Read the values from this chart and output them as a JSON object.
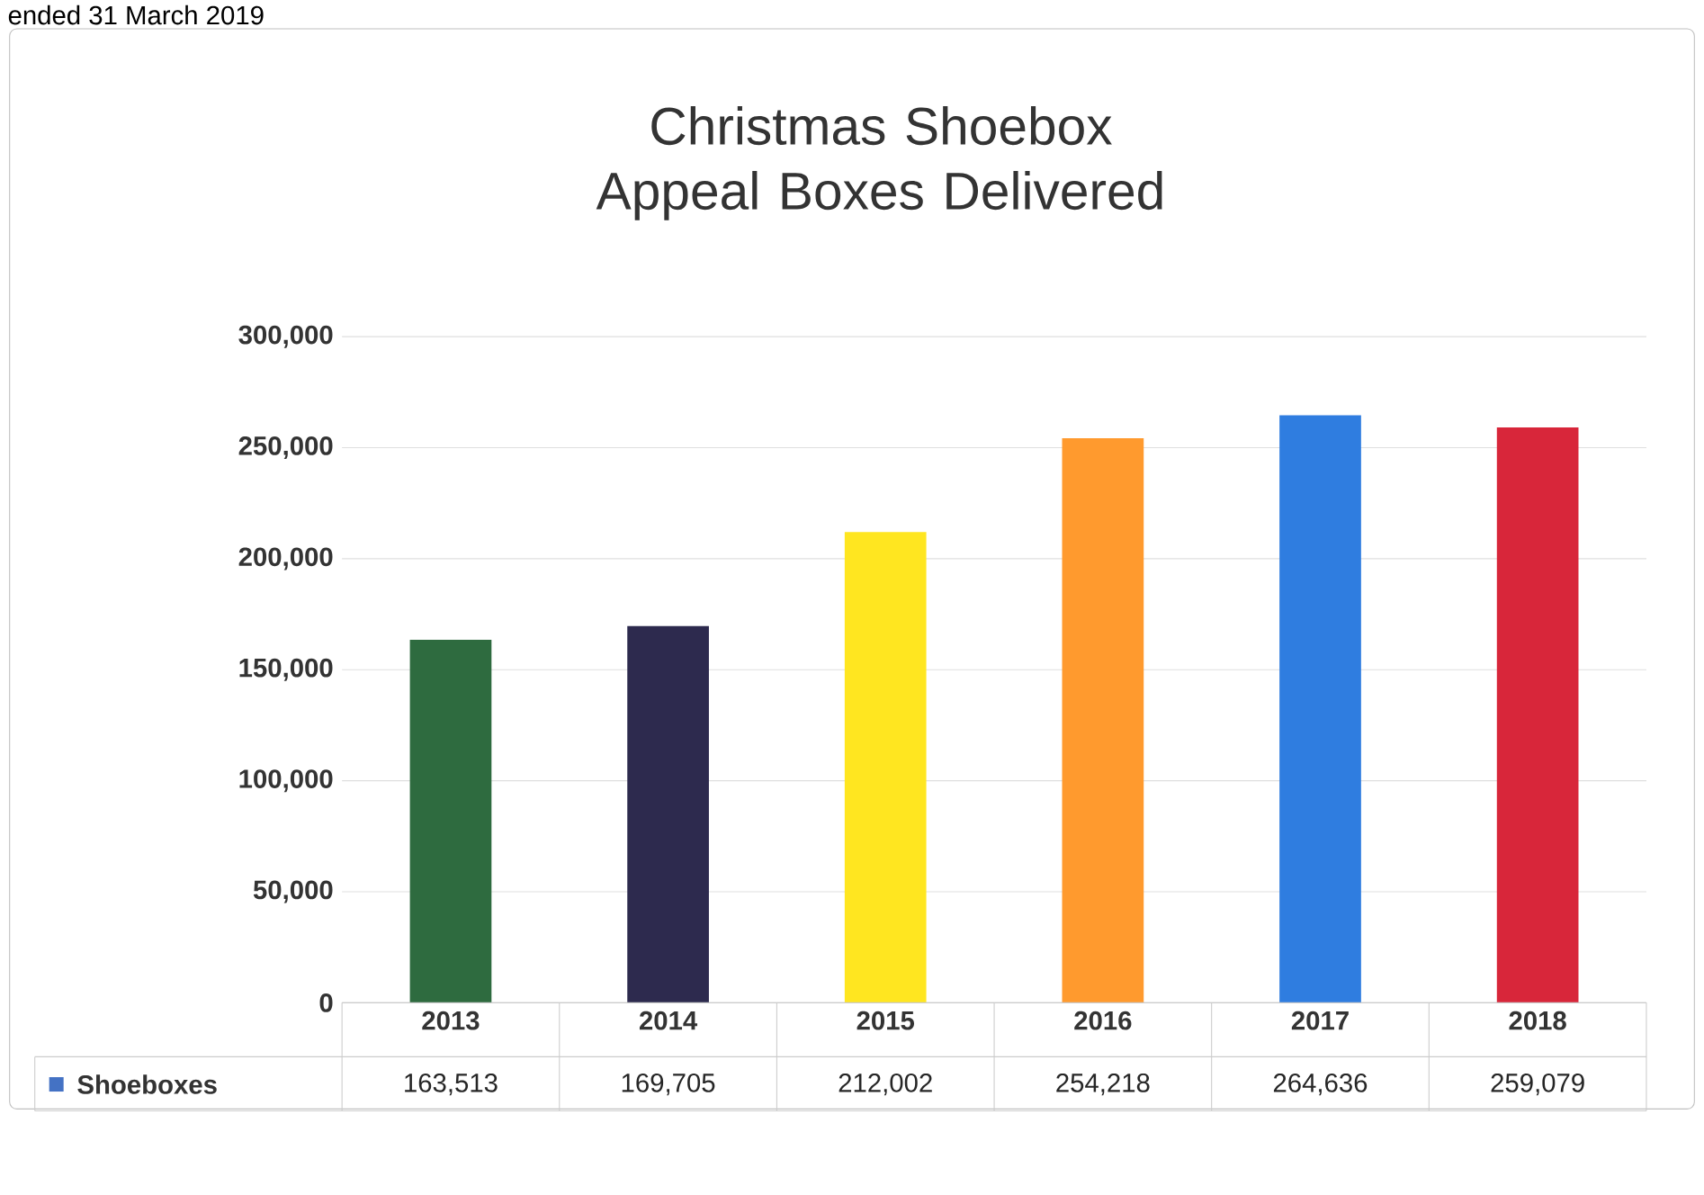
{
  "chart_data": {
    "type": "bar",
    "title": "Christmas Shoebox Appeal Boxes Delivered",
    "annotations": [
      "ended 31 March 2019"
    ],
    "categories": [
      "2013",
      "2014",
      "2015",
      "2016",
      "2017",
      "2018"
    ],
    "series": [
      {
        "name": "Shoeboxes",
        "color": "#4472c4",
        "colors": [
          "#2e6b3f",
          "#2d2a4e",
          "#ffe620",
          "#ff9a2e",
          "#2f7de0",
          "#d8263a"
        ],
        "values": [
          163513,
          169705,
          212002,
          254218,
          264636,
          259079
        ],
        "value_labels": [
          "163,513",
          "169,705",
          "212,002",
          "254,218",
          "264,636",
          "259,079"
        ]
      }
    ],
    "ylim": [
      0,
      300000
    ],
    "yticks": [
      {
        "value": 0,
        "label": "0"
      },
      {
        "value": 50000,
        "label": "50,000"
      },
      {
        "value": 100000,
        "label": "100,000"
      },
      {
        "value": 150000,
        "label": "150,000"
      },
      {
        "value": 200000,
        "label": "200,000"
      },
      {
        "value": 250000,
        "label": "250,000"
      },
      {
        "value": 300000,
        "label": "300,000"
      }
    ],
    "grid": "y",
    "legend": "bottom"
  }
}
